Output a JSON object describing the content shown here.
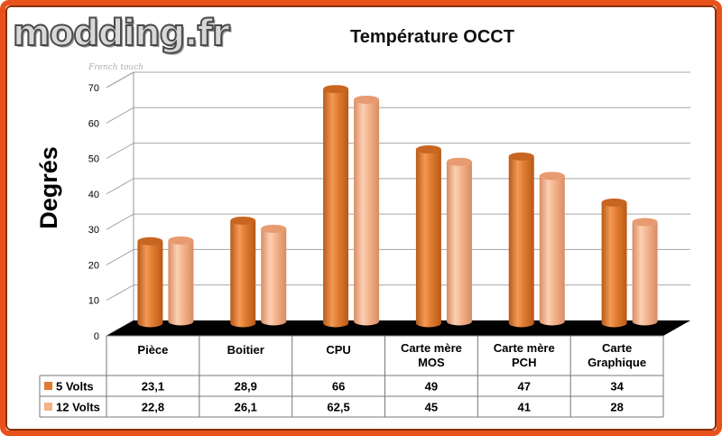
{
  "watermark": {
    "logo_text": "modding.fr",
    "tagline": "French touch"
  },
  "colors": {
    "frame": "#e8521a",
    "series_5v": "#e07b30",
    "series_12v": "#f4b28a",
    "floor": "#000000"
  },
  "chart_data": {
    "type": "bar",
    "style": "3d-cylinder",
    "title": "Température OCCT",
    "ylabel": "Degrés",
    "xlabel": "",
    "ylim": [
      0,
      70
    ],
    "yticks": [
      0,
      10,
      20,
      30,
      40,
      50,
      60,
      70
    ],
    "grid": true,
    "legend": "data-table",
    "categories": [
      [
        "Pièce"
      ],
      [
        "Boitier"
      ],
      [
        "CPU"
      ],
      [
        "Carte mère",
        "MOS"
      ],
      [
        "Carte mère",
        "PCH"
      ],
      [
        "Carte",
        "Graphique"
      ]
    ],
    "series": [
      {
        "name": "5 Volts",
        "color": "#e07b30",
        "values": [
          23.1,
          28.9,
          66,
          49,
          47,
          34
        ],
        "labels": [
          "23,1",
          "28,9",
          "66",
          "49",
          "47",
          "34"
        ]
      },
      {
        "name": "12 Volts",
        "color": "#f4b28a",
        "values": [
          22.8,
          26.1,
          62.5,
          45,
          41,
          28
        ],
        "labels": [
          "22,8",
          "26,1",
          "62,5",
          "45",
          "41",
          "28"
        ]
      }
    ]
  }
}
